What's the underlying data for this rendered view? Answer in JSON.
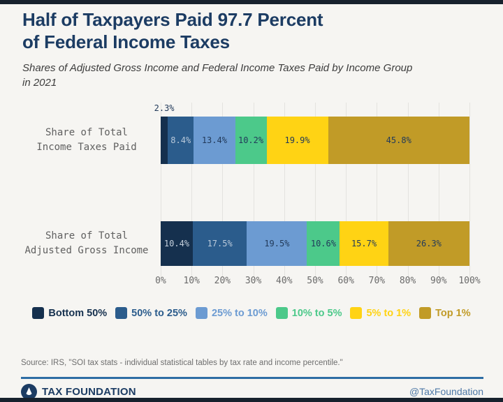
{
  "header": {
    "title_line1": "Half of Taxpayers Paid 97.7 Percent",
    "title_line2": "of Federal Income Taxes",
    "subtitle_line1": "Shares of Adjusted Gross Income and Federal Income Taxes Paid by Income Group",
    "subtitle_line2": "in 2021"
  },
  "chart_data": {
    "type": "bar",
    "orientation": "horizontal",
    "stacked": true,
    "title": "Half of Taxpayers Paid 97.7 Percent of Federal Income Taxes",
    "subtitle": "Shares of Adjusted Gross Income and Federal Income Taxes Paid by Income Group in 2021",
    "categories": [
      [
        "Share of Total",
        "Income Taxes Paid"
      ],
      [
        "Share of Total",
        "Adjusted Gross Income"
      ]
    ],
    "segments": [
      "Bottom 50%",
      "50% to 25%",
      "25% to 10%",
      "10% to 5%",
      "5% to 1%",
      "Top 1%"
    ],
    "series": [
      {
        "name": "Share of Total Income Taxes Paid",
        "values": [
          2.3,
          8.4,
          13.4,
          10.2,
          19.9,
          45.8
        ]
      },
      {
        "name": "Share of Total Adjusted Gross Income",
        "values": [
          10.4,
          17.5,
          19.5,
          10.6,
          15.7,
          26.3
        ]
      }
    ],
    "colors": [
      "#15304e",
      "#2b5c8c",
      "#6c9bd2",
      "#4cc98a",
      "#ffd314",
      "#c19b27"
    ],
    "value_label_colors": [
      "#c6d1dd",
      "#b9c9da",
      "#223a5a",
      "#223a5a",
      "#223a5a",
      "#223a5a"
    ],
    "x_ticks": [
      "0%",
      "10%",
      "20%",
      "30%",
      "40%",
      "50%",
      "60%",
      "70%",
      "80%",
      "90%",
      "100%"
    ],
    "xlim": [
      0,
      100
    ],
    "grid": "vertical",
    "legend_position": "bottom",
    "outside_label_threshold": 4,
    "value_suffix": "%"
  },
  "footer": {
    "source": "Source: IRS, \"SOI tax stats - individual statistical tables by tax rate and income percentile.\"",
    "brand": "TAX FOUNDATION",
    "handle": "@TaxFoundation"
  }
}
